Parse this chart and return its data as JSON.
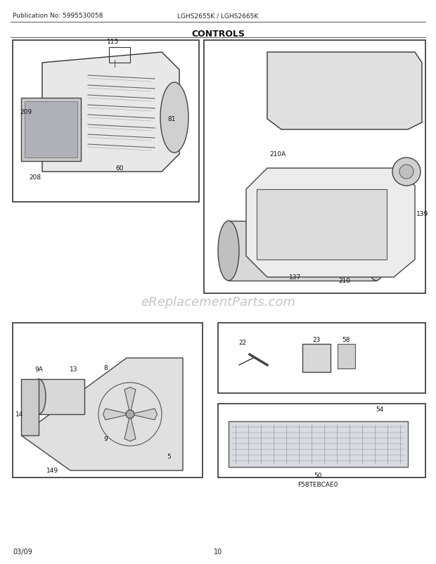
{
  "title": "CONTROLS",
  "pub_no": "Publication No: 5995530058",
  "model": "LGHS2655K / LGHS2665K",
  "date": "03/09",
  "page": "10",
  "watermark": "eReplacementParts.com",
  "bg_color": "#ffffff",
  "border_color": "#000000",
  "diagram_color": "#333333",
  "watermark_color": "#cccccc",
  "labels": {
    "top_box": [
      "115",
      "81",
      "60",
      "208",
      "209"
    ],
    "right_assembly": [
      "210A",
      "139",
      "210",
      "137"
    ],
    "bottom_left_box": [
      "14",
      "9A",
      "13",
      "8",
      "9",
      "5",
      "149"
    ],
    "bottom_right_top_box": [
      "22",
      "23",
      "58"
    ],
    "bottom_right_bot_box": [
      "54",
      "50",
      "F58TEBCAE0"
    ]
  }
}
